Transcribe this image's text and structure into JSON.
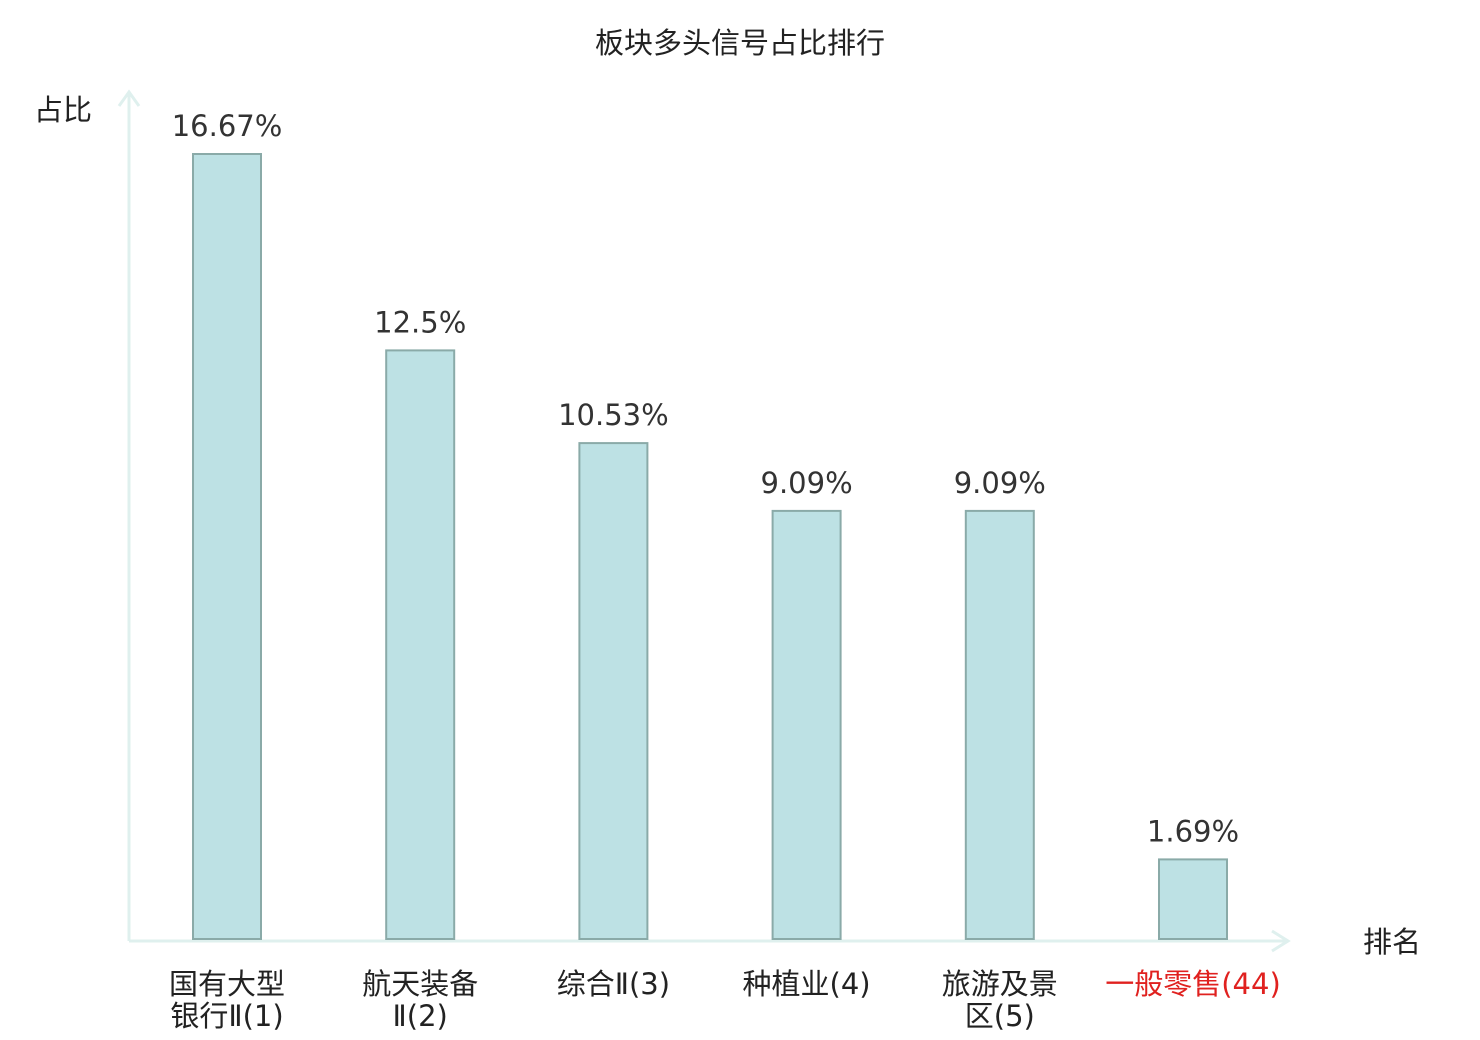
{
  "chart_data": {
    "type": "bar",
    "title": "板块多头信号占比排行",
    "xlabel": "排名",
    "ylabel": "占比",
    "categories": [
      [
        "国有大型",
        "银行Ⅱ(1)"
      ],
      [
        "航天装备",
        "Ⅱ(2)"
      ],
      [
        "综合Ⅱ(3)"
      ],
      [
        "种植业(4)"
      ],
      [
        "旅游及景",
        "区(5)"
      ],
      [
        "一般零售(44)"
      ]
    ],
    "values": [
      16.67,
      12.5,
      10.53,
      9.09,
      9.09,
      1.69
    ],
    "value_labels": [
      "16.67%",
      "12.5%",
      "10.53%",
      "9.09%",
      "9.09%",
      "1.69%"
    ],
    "highlight_index": 5,
    "ylim": [
      0,
      16.67
    ],
    "grid": false,
    "colors": {
      "bar_fill": "#bde1e4",
      "bar_stroke": "#8aaaa8",
      "axis": "#dff0ee",
      "tick_normal": "#222222",
      "tick_highlight": "#e0211f"
    }
  }
}
